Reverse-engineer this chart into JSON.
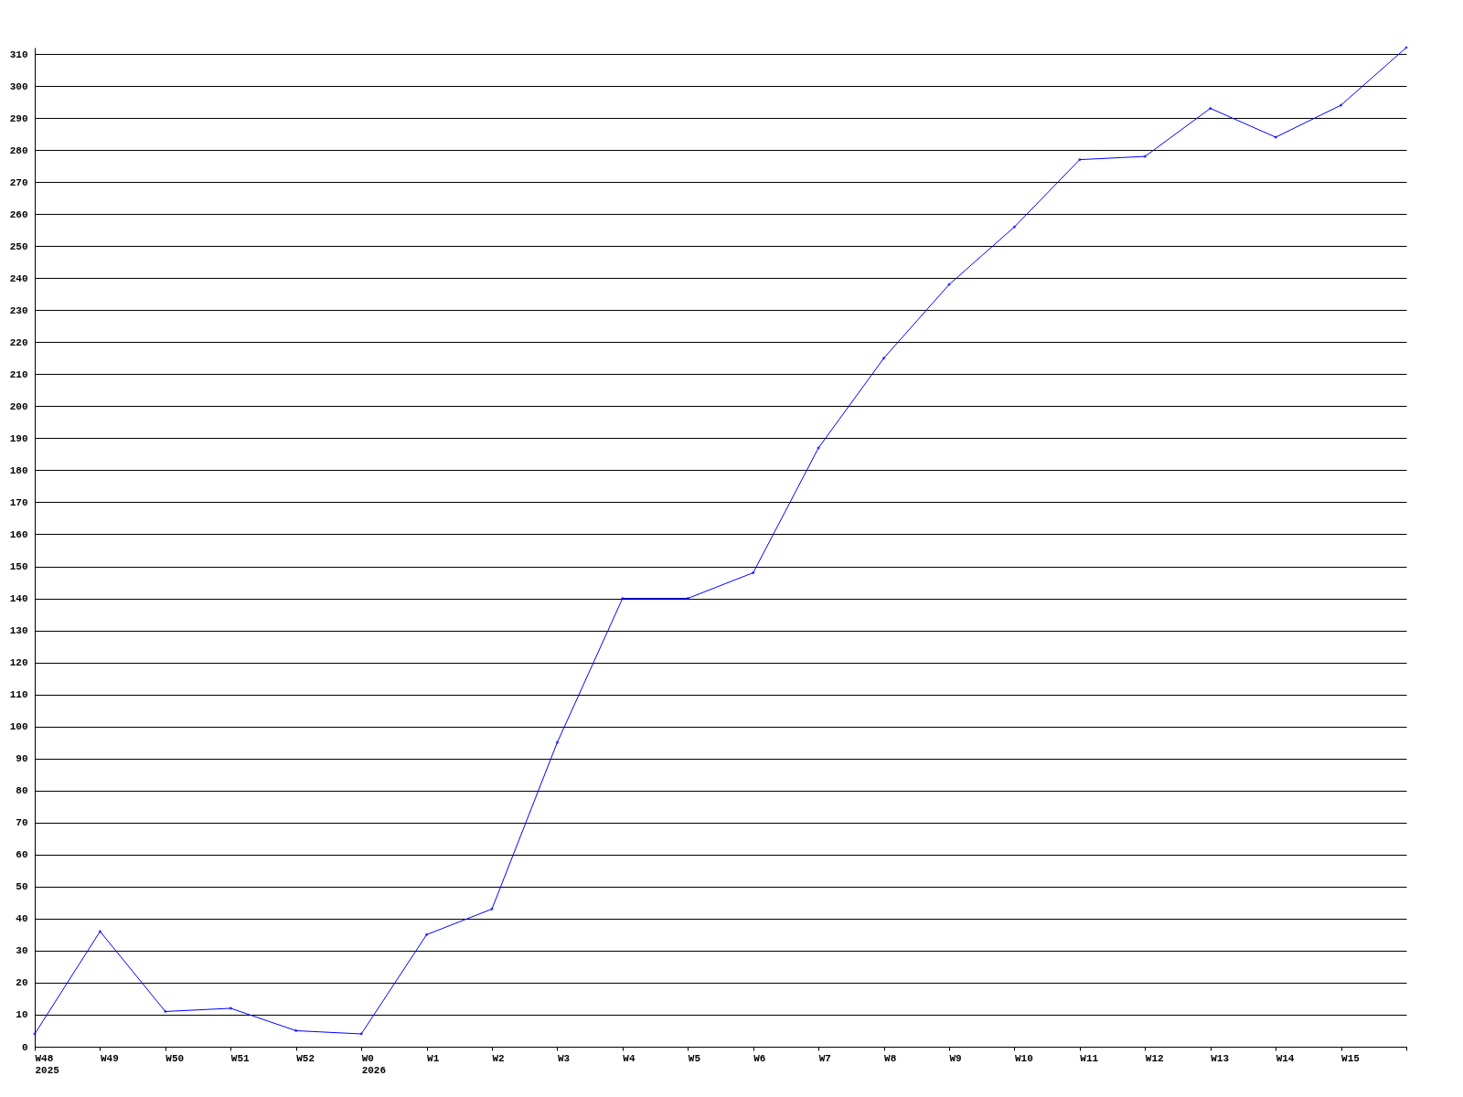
{
  "chart_data": {
    "type": "line",
    "categories": [
      "W48\n2025",
      "W49",
      "W50",
      "W51",
      "W52",
      "W0\n2026",
      "W1",
      "W2",
      "W3",
      "W4",
      "W5",
      "W6",
      "W7",
      "W8",
      "W9",
      "W10",
      "W11",
      "W12",
      "W13",
      "W14",
      "W15",
      null
    ],
    "series": [
      {
        "color": "#0000ff",
        "values": [
          4,
          36,
          11,
          12,
          5,
          4,
          35,
          43,
          95,
          140,
          140,
          148,
          187,
          215,
          238,
          256,
          277,
          278,
          293,
          284,
          294,
          312
        ]
      }
    ],
    "ylim": [
      0,
      312
    ],
    "yticks": [
      0,
      10,
      20,
      30,
      40,
      50,
      60,
      70,
      80,
      90,
      100,
      110,
      120,
      130,
      140,
      150,
      160,
      170,
      180,
      190,
      200,
      210,
      220,
      230,
      240,
      250,
      260,
      270,
      280,
      290,
      300,
      310
    ],
    "grid": "y",
    "marker": "diamond",
    "line_style": "solid"
  }
}
